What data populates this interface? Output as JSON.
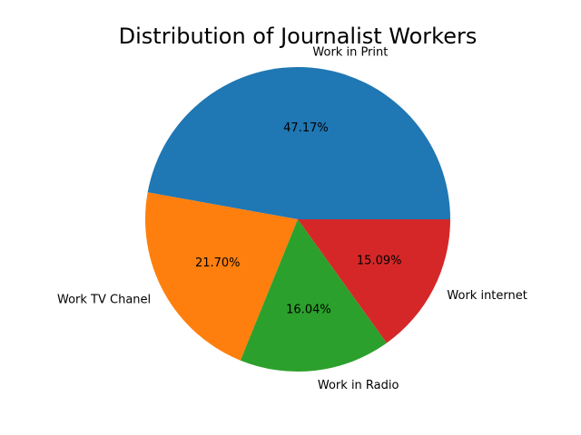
{
  "chart_data": {
    "type": "pie",
    "title": "Distribution of Journalist Workers",
    "slices": [
      {
        "label": "Work in Print",
        "value": 47.17,
        "pct_text": "47.17%",
        "color": "#1f77b4"
      },
      {
        "label": "Work TV Chanel",
        "value": 21.7,
        "pct_text": "21.70%",
        "color": "#ff7f0e"
      },
      {
        "label": "Work in Radio",
        "value": 16.04,
        "pct_text": "16.04%",
        "color": "#2ca02c"
      },
      {
        "label": "Work internet",
        "value": 15.09,
        "pct_text": "15.09%",
        "color": "#d62728"
      }
    ],
    "start_angle_deg": 0,
    "direction": "counterclockwise",
    "legend": "none"
  }
}
